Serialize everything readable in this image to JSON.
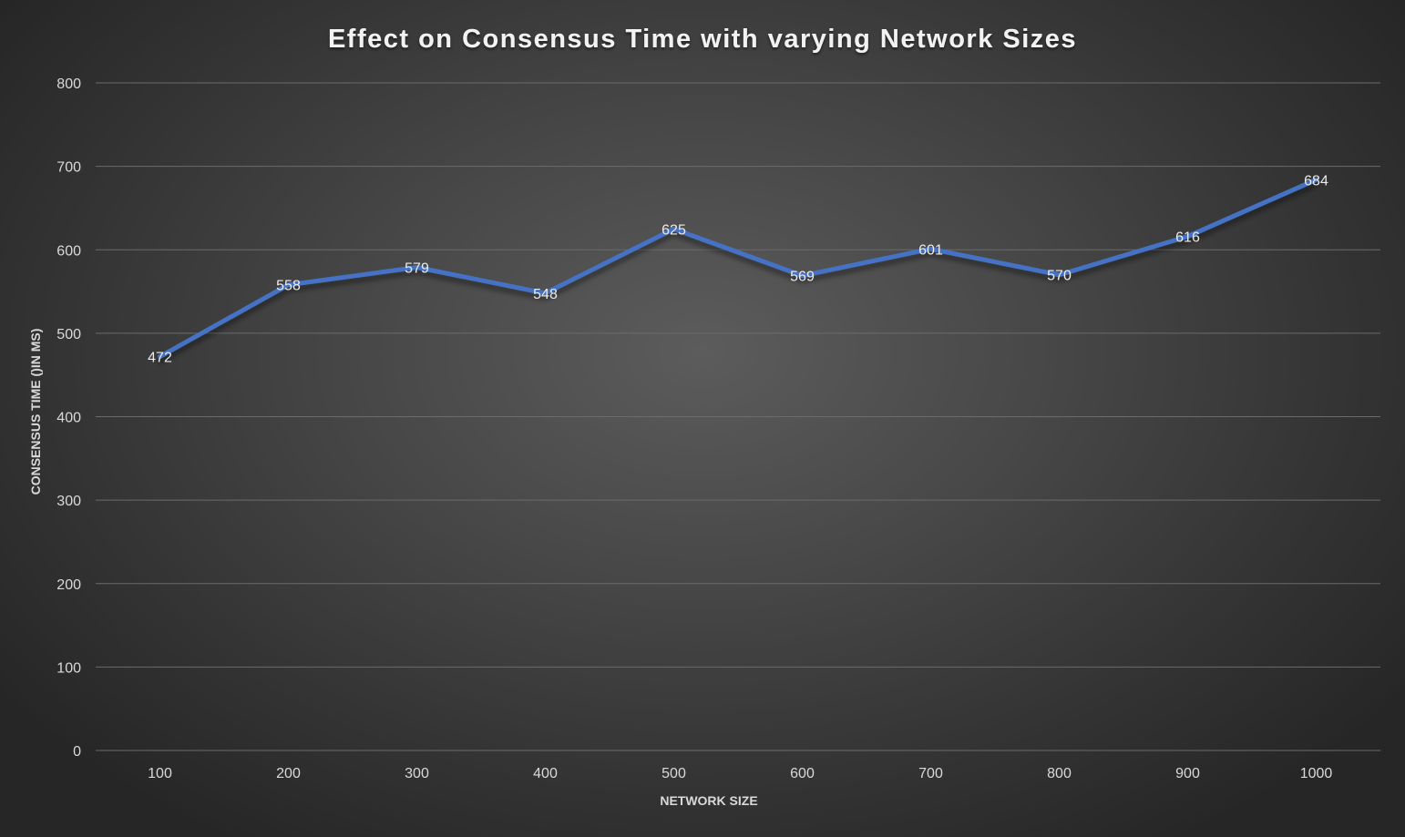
{
  "chart_data": {
    "type": "line",
    "title": "Effect on Consensus Time with varying Network Sizes",
    "xlabel": "NETWORK SIZE",
    "ylabel": "CONSENSUS TIME ()IN MS)",
    "categories": [
      "100",
      "200",
      "300",
      "400",
      "500",
      "600",
      "700",
      "800",
      "900",
      "1000"
    ],
    "series": [
      {
        "values": [
          472,
          558,
          579,
          548,
          625,
          569,
          601,
          570,
          616,
          684
        ],
        "color": "#4472c4",
        "data_labels": true
      }
    ],
    "ylim": [
      0,
      800
    ],
    "y_ticks": [
      0,
      100,
      200,
      300,
      400,
      500,
      600,
      700,
      800
    ],
    "grid": true,
    "legend": "none"
  }
}
